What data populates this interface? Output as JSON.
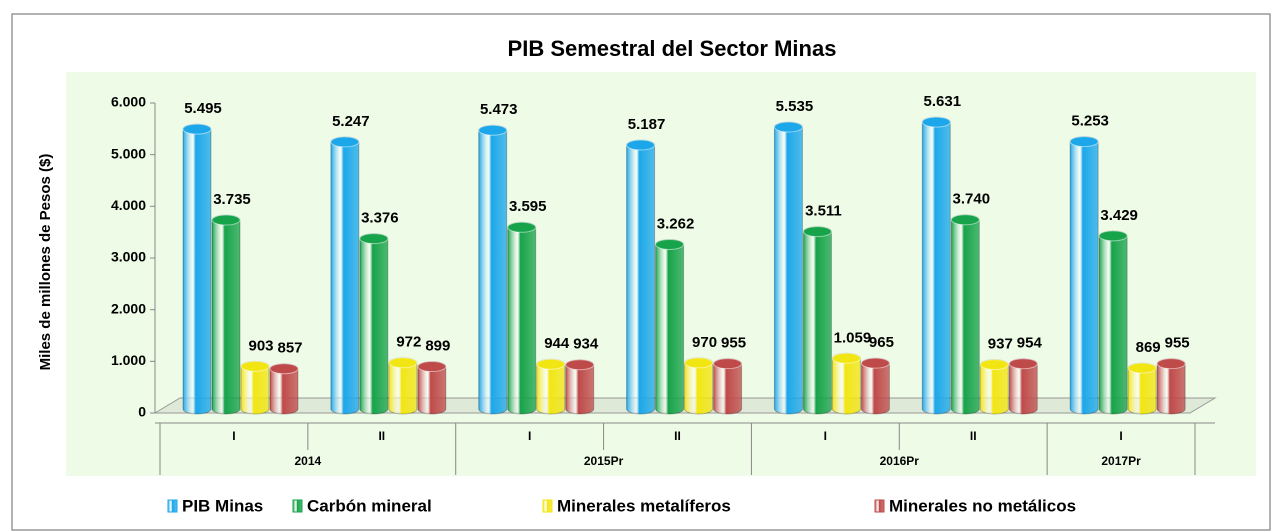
{
  "chart_data": {
    "type": "bar",
    "title": "PIB  Semestral del Sector Minas",
    "y_label": "Miles de millones de Pesos ($)",
    "groups": [
      {
        "label": "2014",
        "categories": [
          "I",
          "II"
        ]
      },
      {
        "label": "2015Pr",
        "categories": [
          "I",
          "II"
        ]
      },
      {
        "label": "2016Pr",
        "categories": [
          "I",
          "II"
        ]
      },
      {
        "label": "2017Pr",
        "categories": [
          "I"
        ]
      }
    ],
    "ylim": [
      0,
      6000
    ],
    "yticks": [
      {
        "value": 0,
        "label": "0"
      },
      {
        "value": 1000,
        "label": "1.000"
      },
      {
        "value": 2000,
        "label": "2.000"
      },
      {
        "value": 3000,
        "label": "3.000"
      },
      {
        "value": 4000,
        "label": "4.000"
      },
      {
        "value": 5000,
        "label": "5.000"
      },
      {
        "value": 6000,
        "label": "6.000"
      }
    ],
    "legend": "bottom",
    "series": [
      {
        "name": "PIB Minas",
        "color": "#1ca7ea",
        "values": [
          5495,
          5247,
          5473,
          5187,
          5535,
          5631,
          5253
        ],
        "value_labels": [
          "5.495",
          "5.247",
          "5.473",
          "5.187",
          "5.535",
          "5.631",
          "5.253"
        ]
      },
      {
        "name": "Carbón mineral",
        "color": "#17a34a",
        "values": [
          3735,
          3376,
          3595,
          3262,
          3511,
          3740,
          3429
        ],
        "value_labels": [
          "3.735",
          "3.376",
          "3.595",
          "3.262",
          "3.511",
          "3.740",
          "3.429"
        ]
      },
      {
        "name": "Minerales metalíferos",
        "color": "#f2e612",
        "values": [
          903,
          972,
          944,
          970,
          1059,
          937,
          869
        ],
        "value_labels": [
          "903",
          "972",
          "944",
          "970",
          "1.059",
          "937",
          "869"
        ]
      },
      {
        "name": "Minerales no metálicos",
        "color": "#bf4a4a",
        "values": [
          857,
          899,
          934,
          955,
          965,
          954,
          955
        ],
        "value_labels": [
          "857",
          "899",
          "934",
          "955",
          "965",
          "954",
          "955"
        ]
      }
    ]
  }
}
